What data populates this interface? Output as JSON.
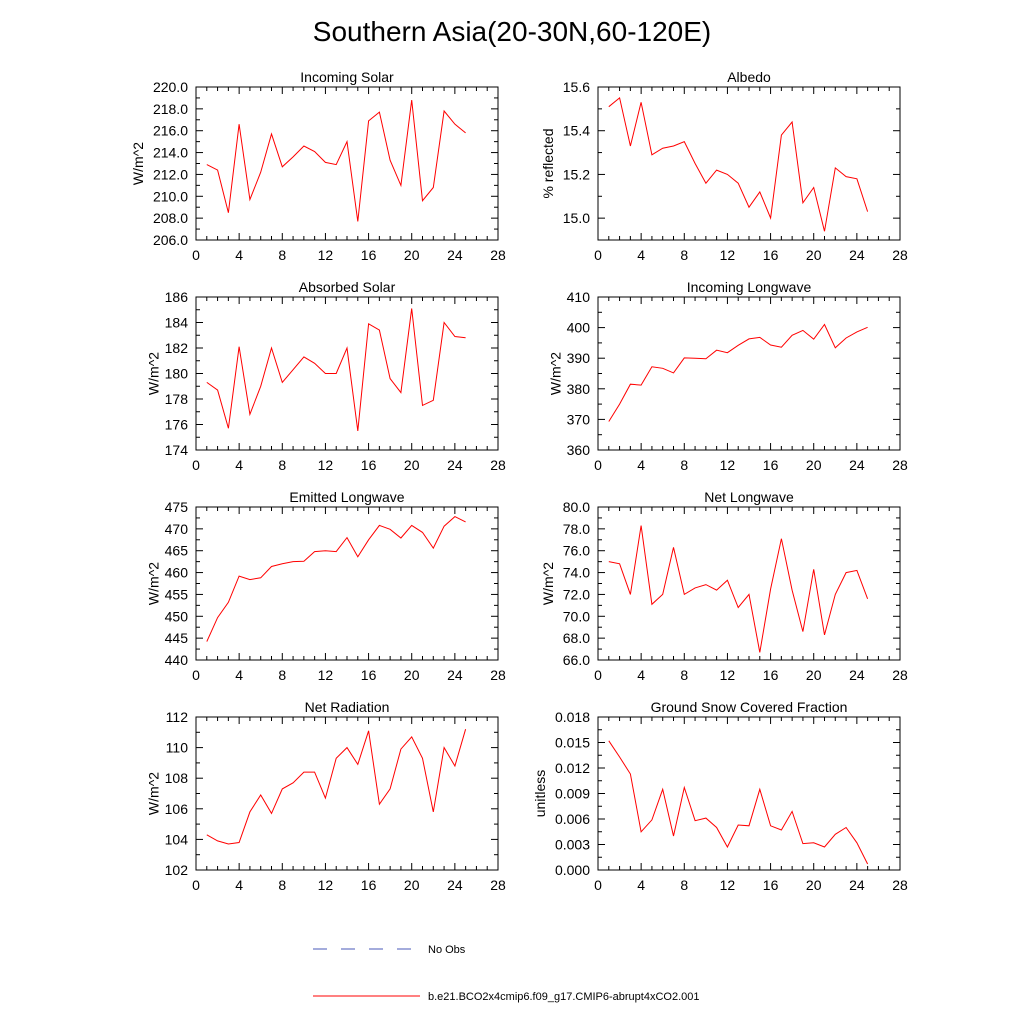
{
  "figure": {
    "title": "Southern Asia(20-30N,60-120E)",
    "legend": [
      {
        "label": "No Obs",
        "color": "#4a5ab8",
        "style": "dashed"
      },
      {
        "label": "b.e21.BCO2x4cmip6.f09_g17.CMIP6-abrupt4xCO2.001",
        "color": "#ff0000",
        "style": "solid"
      }
    ]
  },
  "chart_data": [
    {
      "type": "line",
      "title": "Incoming Solar",
      "xlabel": "",
      "ylabel": "W/m^2",
      "xlim": [
        0,
        28
      ],
      "xticks": [
        0,
        4,
        8,
        12,
        16,
        20,
        24,
        28
      ],
      "ylim": [
        206,
        220
      ],
      "yticks": [
        "206.0",
        "208.0",
        "210.0",
        "212.0",
        "214.0",
        "216.0",
        "218.0",
        "220.0"
      ],
      "series": [
        {
          "name": "b.e21.BCO2x4cmip6.f09_g17.CMIP6-abrupt4xCO2.001",
          "x": [
            1,
            2,
            3,
            4,
            5,
            6,
            7,
            8,
            9,
            10,
            11,
            12,
            13,
            14,
            15,
            16,
            17,
            18,
            19,
            20,
            21,
            22,
            23,
            24,
            25
          ],
          "values": [
            212.9,
            212.4,
            208.5,
            216.6,
            209.7,
            212.2,
            215.7,
            212.7,
            213.6,
            214.6,
            214.1,
            213.1,
            212.9,
            215.0,
            207.7,
            216.9,
            217.7,
            213.3,
            211.0,
            218.8,
            209.6,
            210.8,
            217.8,
            216.6,
            215.8
          ]
        }
      ]
    },
    {
      "type": "line",
      "title": "Albedo",
      "xlabel": "",
      "ylabel": "% reflected",
      "xlim": [
        0,
        28
      ],
      "xticks": [
        0,
        4,
        8,
        12,
        16,
        20,
        24,
        28
      ],
      "ylim": [
        14.9,
        15.6
      ],
      "yticks": [
        "15.0",
        "15.2",
        "15.4",
        "15.6"
      ],
      "series": [
        {
          "name": "b.e21.BCO2x4cmip6.f09_g17.CMIP6-abrupt4xCO2.001",
          "x": [
            1,
            2,
            3,
            4,
            5,
            6,
            7,
            8,
            9,
            10,
            11,
            12,
            13,
            14,
            15,
            16,
            17,
            18,
            19,
            20,
            21,
            22,
            23,
            24,
            25
          ],
          "values": [
            15.51,
            15.55,
            15.33,
            15.53,
            15.29,
            15.32,
            15.33,
            15.35,
            15.25,
            15.16,
            15.22,
            15.2,
            15.16,
            15.05,
            15.12,
            15.0,
            15.38,
            15.44,
            15.07,
            15.14,
            14.94,
            15.23,
            15.19,
            15.18,
            15.03
          ]
        }
      ]
    },
    {
      "type": "line",
      "title": "Absorbed Solar",
      "xlabel": "",
      "ylabel": "W/m^2",
      "xlim": [
        0,
        28
      ],
      "xticks": [
        0,
        4,
        8,
        12,
        16,
        20,
        24,
        28
      ],
      "ylim": [
        174,
        186
      ],
      "yticks": [
        "174",
        "176",
        "178",
        "180",
        "182",
        "184",
        "186"
      ],
      "series": [
        {
          "name": "b.e21.BCO2x4cmip6.f09_g17.CMIP6-abrupt4xCO2.001",
          "x": [
            1,
            2,
            3,
            4,
            5,
            6,
            7,
            8,
            9,
            10,
            11,
            12,
            13,
            14,
            15,
            16,
            17,
            18,
            19,
            20,
            21,
            22,
            23,
            24,
            25
          ],
          "values": [
            179.3,
            178.7,
            175.7,
            182.1,
            176.8,
            179.0,
            182.0,
            179.3,
            180.3,
            181.3,
            180.8,
            180.0,
            180.0,
            182.0,
            175.5,
            183.9,
            183.4,
            179.6,
            178.5,
            185.1,
            177.5,
            177.9,
            184.0,
            182.9,
            182.8
          ]
        }
      ]
    },
    {
      "type": "line",
      "title": "Incoming Longwave",
      "xlabel": "",
      "ylabel": "W/m^2",
      "xlim": [
        0,
        28
      ],
      "xticks": [
        0,
        4,
        8,
        12,
        16,
        20,
        24,
        28
      ],
      "ylim": [
        360,
        410
      ],
      "yticks": [
        "360",
        "370",
        "380",
        "390",
        "400",
        "410"
      ],
      "series": [
        {
          "name": "b.e21.BCO2x4cmip6.f09_g17.CMIP6-abrupt4xCO2.001",
          "x": [
            1,
            2,
            3,
            4,
            5,
            6,
            7,
            8,
            9,
            10,
            11,
            12,
            13,
            14,
            15,
            16,
            17,
            18,
            19,
            20,
            21,
            22,
            23,
            24,
            25
          ],
          "values": [
            369.3,
            375.0,
            381.5,
            381.2,
            387.2,
            386.7,
            385.2,
            390.1,
            390.0,
            389.8,
            392.6,
            391.8,
            394.2,
            396.3,
            396.8,
            394.3,
            393.6,
            397.5,
            399.1,
            396.2,
            401.0,
            393.4,
            396.6,
            398.6,
            400.1
          ]
        }
      ]
    },
    {
      "type": "line",
      "title": "Emitted Longwave",
      "xlabel": "",
      "ylabel": "W/m^2",
      "xlim": [
        0,
        28
      ],
      "xticks": [
        0,
        4,
        8,
        12,
        16,
        20,
        24,
        28
      ],
      "ylim": [
        440,
        475
      ],
      "yticks": [
        "440",
        "445",
        "450",
        "455",
        "460",
        "465",
        "470",
        "475"
      ],
      "series": [
        {
          "name": "b.e21.BCO2x4cmip6.f09_g17.CMIP6-abrupt4xCO2.001",
          "x": [
            1,
            2,
            3,
            4,
            5,
            6,
            7,
            8,
            9,
            10,
            11,
            12,
            13,
            14,
            15,
            16,
            17,
            18,
            19,
            20,
            21,
            22,
            23,
            24,
            25
          ],
          "values": [
            444.2,
            449.7,
            453.2,
            459.2,
            458.4,
            458.8,
            461.4,
            462.0,
            462.5,
            462.6,
            464.8,
            465.0,
            464.8,
            468.0,
            463.6,
            467.5,
            470.8,
            469.9,
            467.9,
            470.8,
            469.2,
            465.6,
            470.6,
            472.8,
            471.6
          ]
        }
      ]
    },
    {
      "type": "line",
      "title": "Net Longwave",
      "xlabel": "",
      "ylabel": "W/m^2",
      "xlim": [
        0,
        28
      ],
      "xticks": [
        0,
        4,
        8,
        12,
        16,
        20,
        24,
        28
      ],
      "ylim": [
        66,
        80
      ],
      "yticks": [
        "66.0",
        "68.0",
        "70.0",
        "72.0",
        "74.0",
        "76.0",
        "78.0",
        "80.0"
      ],
      "series": [
        {
          "name": "b.e21.BCO2x4cmip6.f09_g17.CMIP6-abrupt4xCO2.001",
          "x": [
            1,
            2,
            3,
            4,
            5,
            6,
            7,
            8,
            9,
            10,
            11,
            12,
            13,
            14,
            15,
            16,
            17,
            18,
            19,
            20,
            21,
            22,
            23,
            24,
            25
          ],
          "values": [
            75.0,
            74.8,
            72.0,
            78.3,
            71.1,
            72.0,
            76.3,
            72.0,
            72.6,
            72.9,
            72.4,
            73.3,
            70.8,
            72.0,
            66.7,
            72.5,
            77.1,
            72.4,
            68.6,
            74.3,
            68.3,
            72.0,
            74.0,
            74.2,
            71.6
          ]
        }
      ]
    },
    {
      "type": "line",
      "title": "Net Radiation",
      "xlabel": "",
      "ylabel": "W/m^2",
      "xlim": [
        0,
        28
      ],
      "xticks": [
        0,
        4,
        8,
        12,
        16,
        20,
        24,
        28
      ],
      "ylim": [
        102,
        112
      ],
      "yticks": [
        "102",
        "104",
        "106",
        "108",
        "110",
        "112"
      ],
      "series": [
        {
          "name": "b.e21.BCO2x4cmip6.f09_g17.CMIP6-abrupt4xCO2.001",
          "x": [
            1,
            2,
            3,
            4,
            5,
            6,
            7,
            8,
            9,
            10,
            11,
            12,
            13,
            14,
            15,
            16,
            17,
            18,
            19,
            20,
            21,
            22,
            23,
            24,
            25
          ],
          "values": [
            104.3,
            103.9,
            103.7,
            103.8,
            105.8,
            106.9,
            105.7,
            107.3,
            107.7,
            108.4,
            108.4,
            106.7,
            109.3,
            110.0,
            108.9,
            111.1,
            106.3,
            107.3,
            109.9,
            110.7,
            109.3,
            105.8,
            110.0,
            108.8,
            111.2
          ]
        }
      ]
    },
    {
      "type": "line",
      "title": "Ground Snow Covered Fraction",
      "xlabel": "",
      "ylabel": "unitless",
      "xlim": [
        0,
        28
      ],
      "xticks": [
        0,
        4,
        8,
        12,
        16,
        20,
        24,
        28
      ],
      "ylim": [
        0,
        0.018
      ],
      "yticks": [
        "0.000",
        "0.003",
        "0.006",
        "0.009",
        "0.012",
        "0.015",
        "0.018"
      ],
      "series": [
        {
          "name": "b.e21.BCO2x4cmip6.f09_g17.CMIP6-abrupt4xCO2.001",
          "x": [
            1,
            2,
            3,
            4,
            5,
            6,
            7,
            8,
            9,
            10,
            11,
            12,
            13,
            14,
            15,
            16,
            17,
            18,
            19,
            20,
            21,
            22,
            23,
            24,
            25
          ],
          "values": [
            0.0152,
            0.0133,
            0.0113,
            0.0045,
            0.0059,
            0.0095,
            0.004,
            0.0097,
            0.0058,
            0.0061,
            0.005,
            0.0027,
            0.0053,
            0.0052,
            0.0095,
            0.0052,
            0.0047,
            0.0069,
            0.0031,
            0.0032,
            0.0027,
            0.0042,
            0.005,
            0.0032,
            0.0007
          ]
        }
      ]
    }
  ]
}
